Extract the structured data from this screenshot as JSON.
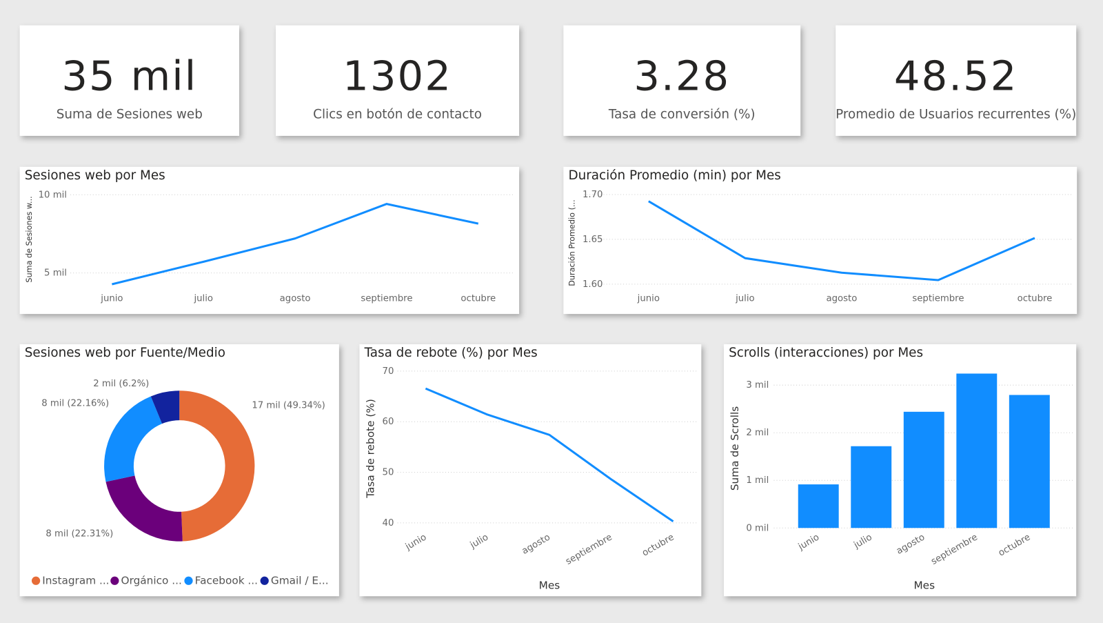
{
  "cards": [
    {
      "value": "35 mil",
      "label": "Suma de Sesiones web"
    },
    {
      "value": "1302",
      "label": "Clics en botón de contacto"
    },
    {
      "value": "3.28",
      "label": "Tasa de conversión (%)"
    },
    {
      "value": "48.52",
      "label": "Promedio de Usuarios recurrentes (%)"
    }
  ],
  "chart_data": [
    {
      "type": "line",
      "title": "Sesiones web por Mes",
      "y_label": "Suma de Sesiones w...",
      "categories": [
        "junio",
        "julio",
        "agosto",
        "septiembre",
        "octubre"
      ],
      "values": [
        4280,
        5720,
        7207,
        9414,
        8153
      ],
      "color": "#118DFF",
      "ylim": [
        4000,
        10300
      ],
      "yticks": [
        {
          "value": 5000,
          "label": "5 mil"
        },
        {
          "value": 10000,
          "label": "10 mil"
        }
      ],
      "grid": true
    },
    {
      "type": "line",
      "title": "Duración Promedio (min) por Mes",
      "y_label": "Duración Promedio (...",
      "categories": [
        "junio",
        "julio",
        "agosto",
        "septiembre",
        "octubre"
      ],
      "values": [
        1.6925,
        1.629,
        1.6128,
        1.6045,
        1.6515
      ],
      "color": "#118DFF",
      "ylim": [
        1.595,
        1.705
      ],
      "yticks": [
        {
          "value": 1.6,
          "label": "1.60"
        },
        {
          "value": 1.65,
          "label": "1.65"
        },
        {
          "value": 1.7,
          "label": "1.70"
        }
      ],
      "grid": true
    },
    {
      "type": "pie",
      "title": "Sesiones web por Fuente/Medio",
      "categories": [
        "Instagram ...",
        "Orgánico ...",
        "Facebook ...",
        "Gmail / E..."
      ],
      "values": [
        49.34,
        22.31,
        22.16,
        6.2
      ],
      "value_labels": [
        "17 mil (49.34%)",
        "8 mil (22.31%)",
        "8 mil (22.16%)",
        "2 mil (6.2%)"
      ],
      "colors": [
        "#E66C37",
        "#6B007B",
        "#118DFF",
        "#12239E"
      ]
    },
    {
      "type": "line",
      "title": "Tasa de rebote (%) por Mes",
      "y_label": "Tasa de rebote (%)",
      "x_label": "Mes",
      "categories": [
        "junio",
        "julio",
        "agosto",
        "septiembre",
        "octubre"
      ],
      "values": [
        66.56,
        61.4,
        57.4,
        48.6,
        40.3
      ],
      "color": "#118DFF",
      "ylim": [
        39,
        71
      ],
      "yticks": [
        40,
        50,
        60,
        70
      ],
      "grid": true
    },
    {
      "type": "bar",
      "title": "Scrolls (interacciones) por Mes",
      "y_label": "Suma de Scrolls",
      "x_label": "Mes",
      "categories": [
        "junio",
        "julio",
        "agosto",
        "septiembre",
        "octubre"
      ],
      "values": [
        915,
        1717,
        2440,
        3242,
        2793
      ],
      "color": "#118DFF",
      "ylim": [
        0,
        3400
      ],
      "yticks": [
        {
          "value": 0,
          "label": "0 mil"
        },
        {
          "value": 1000,
          "label": "1 mil"
        },
        {
          "value": 2000,
          "label": "2 mil"
        },
        {
          "value": 3000,
          "label": "3 mil"
        }
      ],
      "grid": true
    }
  ]
}
